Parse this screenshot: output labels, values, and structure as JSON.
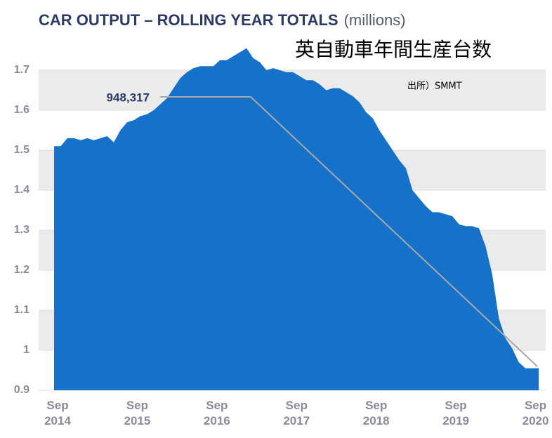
{
  "chart_data": {
    "type": "area",
    "title": "CAR OUTPUT – ROLLING YEAR TOTALS",
    "subtitle": "(millions)",
    "overlay_title": "英自動車年間生産台数",
    "source": "出所）SMMT",
    "annotation": "948,317",
    "color": "#1672c9",
    "categories": [
      "Sep 2014",
      null,
      null,
      null,
      null,
      null,
      null,
      null,
      null,
      null,
      null,
      null,
      "Sep 2015",
      null,
      null,
      null,
      null,
      null,
      null,
      null,
      null,
      null,
      null,
      null,
      "Sep 2016",
      null,
      null,
      null,
      null,
      null,
      null,
      null,
      null,
      null,
      null,
      null,
      "Sep 2017",
      null,
      null,
      null,
      null,
      null,
      null,
      null,
      null,
      null,
      null,
      null,
      "Sep 2018",
      null,
      null,
      null,
      null,
      null,
      null,
      null,
      null,
      null,
      null,
      null,
      "Sep 2019",
      null,
      null,
      null,
      null,
      null,
      null,
      null,
      null,
      null,
      null,
      null,
      "Sep 2020",
      null
    ],
    "values": [
      1.51,
      1.51,
      1.53,
      1.53,
      1.525,
      1.53,
      1.525,
      1.53,
      1.535,
      1.52,
      1.55,
      1.57,
      1.575,
      1.585,
      1.59,
      1.6,
      1.615,
      1.63,
      1.655,
      1.68,
      1.695,
      1.705,
      1.71,
      1.71,
      1.71,
      1.725,
      1.725,
      1.735,
      1.745,
      1.755,
      1.73,
      1.72,
      1.7,
      1.705,
      1.7,
      1.695,
      1.695,
      1.685,
      1.675,
      1.675,
      1.665,
      1.65,
      1.655,
      1.655,
      1.645,
      1.635,
      1.62,
      1.595,
      1.58,
      1.55,
      1.525,
      1.5,
      1.475,
      1.455,
      1.4,
      1.38,
      1.36,
      1.345,
      1.345,
      1.34,
      1.335,
      1.315,
      1.31,
      1.31,
      1.305,
      1.26,
      1.19,
      1.08,
      1.03,
      1.005,
      0.97,
      0.955,
      0.955,
      0.955
    ],
    "ylim": [
      0.9,
      1.75
    ],
    "yticks": [
      0.9,
      1,
      1.1,
      1.2,
      1.3,
      1.4,
      1.5,
      1.6,
      1.7
    ]
  }
}
